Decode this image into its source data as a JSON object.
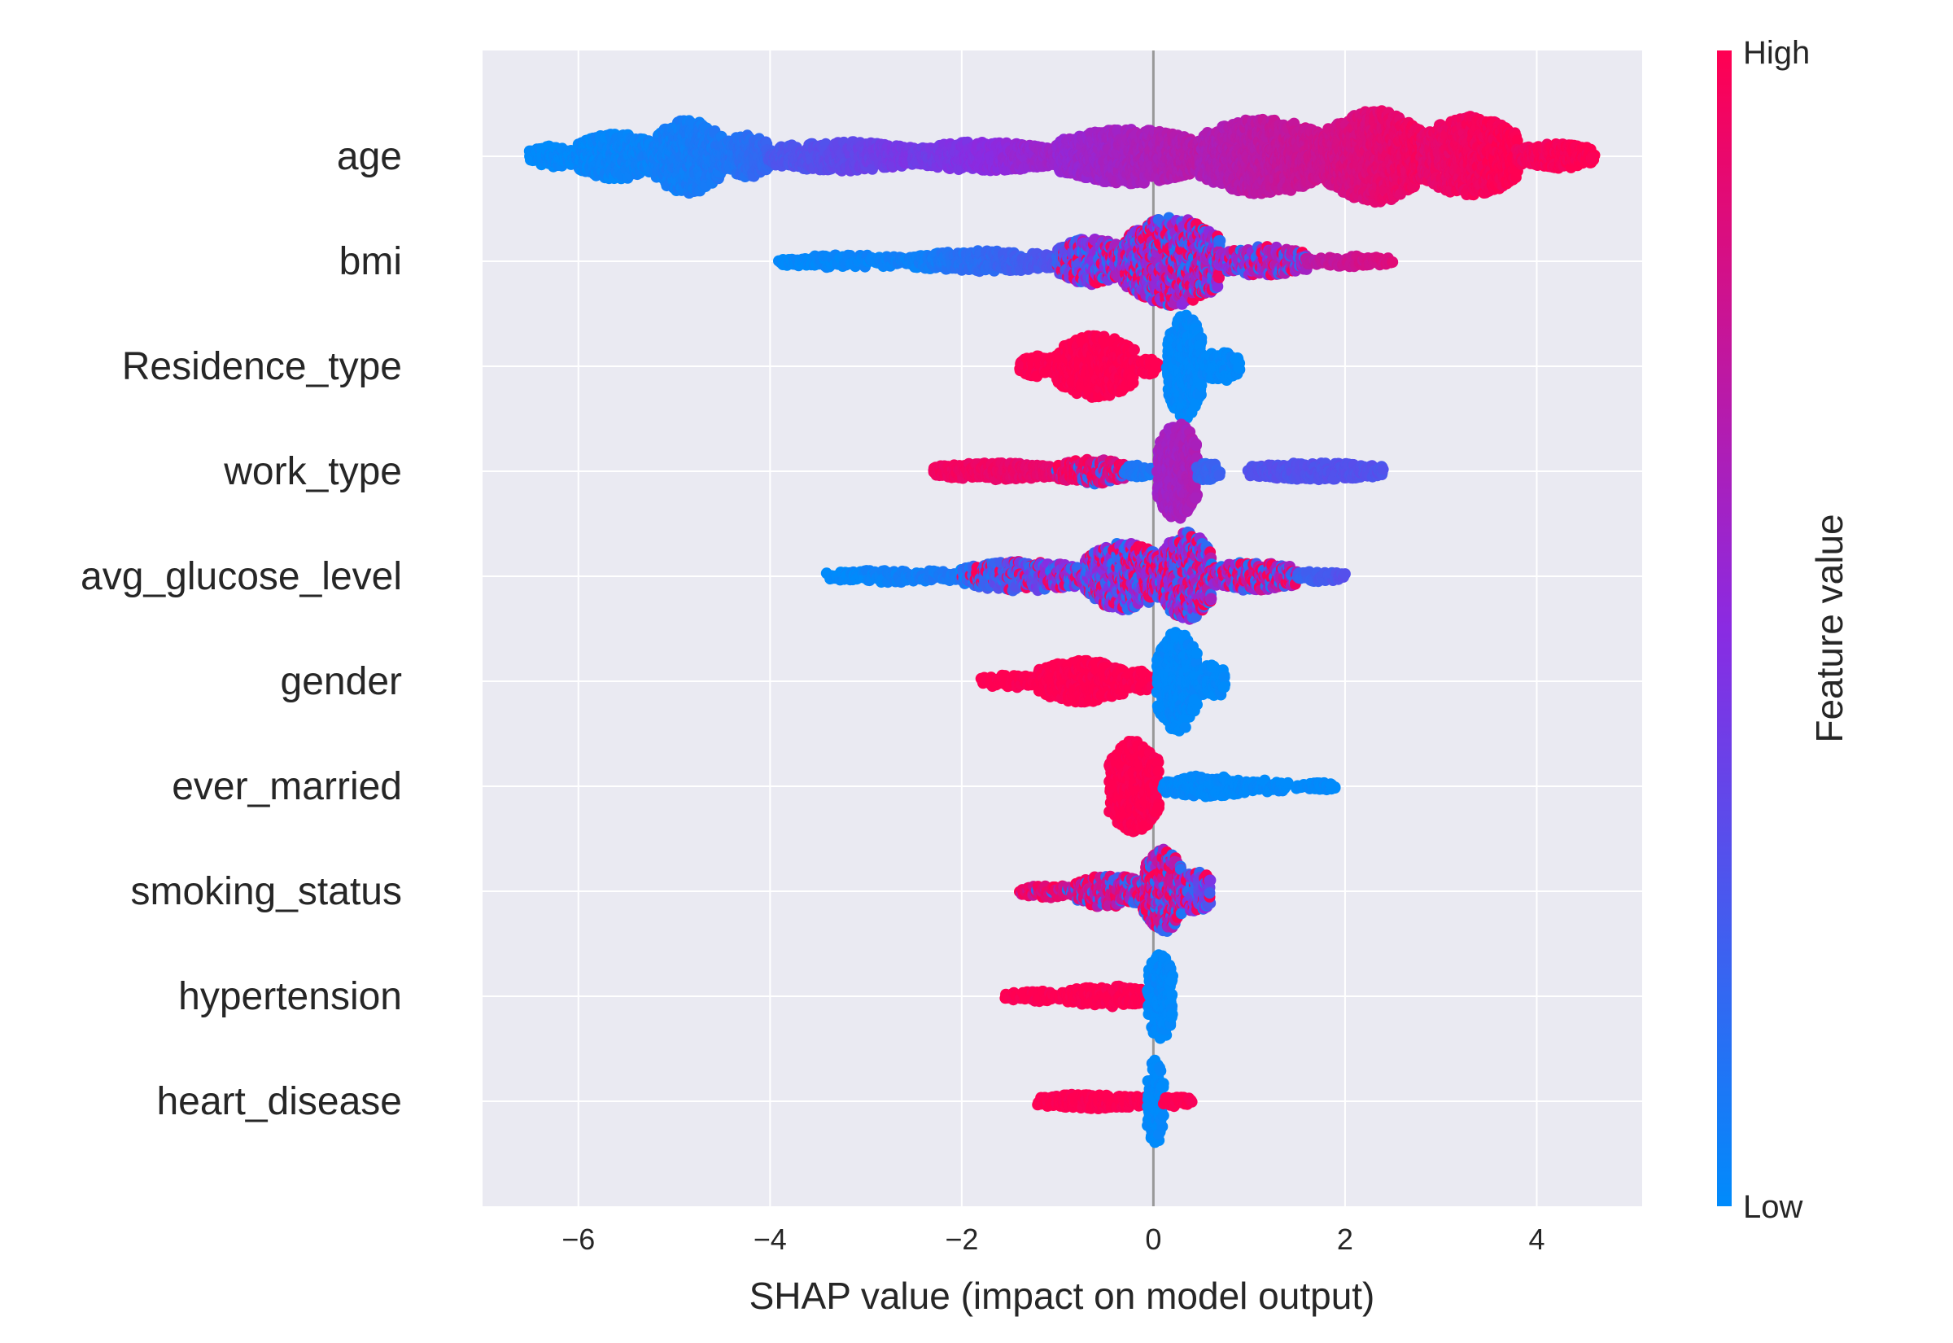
{
  "chart_data": {
    "type": "scatter",
    "subtype": "shap-beeswarm",
    "xlabel": "SHAP value (impact on model output)",
    "xlim": [
      -7.0,
      5.1
    ],
    "xticks": [
      -6,
      -4,
      -2,
      0,
      2,
      4
    ],
    "xtick_labels": [
      "−6",
      "−4",
      "−2",
      "0",
      "2",
      "4"
    ],
    "grid": true,
    "colorbar": {
      "label": "Feature value",
      "high_label": "High",
      "low_label": "Low",
      "high_color": "#ff0052",
      "mid_color": "#8a2be2",
      "low_color": "#008bfb",
      "placement": "right"
    },
    "colors": {
      "background": "#eaeaf2",
      "grid": "#ffffff",
      "zero_line": "#999999"
    },
    "features": [
      {
        "name": "age",
        "segments": [
          {
            "x0": -6.5,
            "x1": -6.0,
            "v0": 0.0,
            "v1": 0.02,
            "w": 0.1
          },
          {
            "x0": -6.0,
            "x1": -5.2,
            "v0": 0.02,
            "v1": 0.05,
            "w": 0.22
          },
          {
            "x0": -5.2,
            "x1": -4.5,
            "v0": 0.05,
            "v1": 0.1,
            "w": 0.35
          },
          {
            "x0": -4.5,
            "x1": -4.0,
            "v0": 0.1,
            "v1": 0.2,
            "w": 0.2
          },
          {
            "x0": -4.0,
            "x1": -2.5,
            "v0": 0.25,
            "v1": 0.45,
            "w": 0.14
          },
          {
            "x0": -2.5,
            "x1": -1.0,
            "v0": 0.4,
            "v1": 0.6,
            "w": 0.14
          },
          {
            "x0": -1.0,
            "x1": 0.5,
            "v0": 0.55,
            "v1": 0.7,
            "w": 0.26
          },
          {
            "x0": 0.5,
            "x1": 1.8,
            "v0": 0.65,
            "v1": 0.8,
            "w": 0.36
          },
          {
            "x0": 1.8,
            "x1": 2.8,
            "v0": 0.8,
            "v1": 0.95,
            "w": 0.44
          },
          {
            "x0": 2.8,
            "x1": 3.8,
            "v0": 0.9,
            "v1": 1.0,
            "w": 0.38
          },
          {
            "x0": 3.8,
            "x1": 4.6,
            "v0": 0.95,
            "v1": 1.0,
            "w": 0.12
          }
        ]
      },
      {
        "name": "bmi",
        "segments": [
          {
            "x0": -3.9,
            "x1": -2.5,
            "v0": 0.0,
            "v1": 0.05,
            "w": 0.06
          },
          {
            "x0": -2.5,
            "x1": -1.0,
            "v0": 0.05,
            "v1": 0.3,
            "w": 0.1
          },
          {
            "x0": -1.0,
            "x1": -0.3,
            "v0": 0.3,
            "v1": 0.6,
            "w": 0.22,
            "mix": 0.4
          },
          {
            "x0": -0.3,
            "x1": 0.7,
            "v0": 0.5,
            "v1": 0.6,
            "w": 0.42,
            "mix": 0.5
          },
          {
            "x0": 0.7,
            "x1": 1.6,
            "v0": 0.55,
            "v1": 0.65,
            "w": 0.14,
            "mix": 0.3
          },
          {
            "x0": 1.6,
            "x1": 2.5,
            "v0": 0.7,
            "v1": 0.85,
            "w": 0.05
          }
        ]
      },
      {
        "name": "Residence_type",
        "segments": [
          {
            "x0": -1.4,
            "x1": -1.0,
            "v0": 1.0,
            "v1": 1.0,
            "w": 0.1
          },
          {
            "x0": -1.0,
            "x1": -0.2,
            "v0": 1.0,
            "v1": 1.0,
            "w": 0.3
          },
          {
            "x0": -0.2,
            "x1": 0.05,
            "v0": 1.0,
            "v1": 1.0,
            "w": 0.08
          },
          {
            "x0": 0.15,
            "x1": 0.5,
            "v0": 0.0,
            "v1": 0.0,
            "w": 0.5
          },
          {
            "x0": 0.5,
            "x1": 0.9,
            "v0": 0.0,
            "v1": 0.0,
            "w": 0.14
          }
        ]
      },
      {
        "name": "work_type",
        "segments": [
          {
            "x0": -2.3,
            "x1": -1.0,
            "v0": 0.95,
            "v1": 0.9,
            "w": 0.08
          },
          {
            "x0": -1.0,
            "x1": -0.3,
            "v0": 0.9,
            "v1": 0.85,
            "w": 0.12,
            "mix": 0.3
          },
          {
            "x0": -0.3,
            "x1": 0.0,
            "v0": 0.1,
            "v1": 0.1,
            "w": 0.06
          },
          {
            "x0": 0.05,
            "x1": 0.45,
            "v0": 0.6,
            "v1": 0.65,
            "w": 0.46
          },
          {
            "x0": 0.45,
            "x1": 0.7,
            "v0": 0.2,
            "v1": 0.2,
            "w": 0.1
          },
          {
            "x0": 1.0,
            "x1": 2.4,
            "v0": 0.3,
            "v1": 0.3,
            "w": 0.08
          }
        ]
      },
      {
        "name": "avg_glucose_level",
        "segments": [
          {
            "x0": -3.4,
            "x1": -2.0,
            "v0": 0.0,
            "v1": 0.1,
            "w": 0.06
          },
          {
            "x0": -2.0,
            "x1": -0.7,
            "v0": 0.1,
            "v1": 0.6,
            "w": 0.14,
            "mix": 0.4
          },
          {
            "x0": -0.7,
            "x1": 0.1,
            "v0": 0.5,
            "v1": 0.55,
            "w": 0.32,
            "mix": 0.5
          },
          {
            "x0": 0.1,
            "x1": 0.6,
            "v0": 0.55,
            "v1": 0.6,
            "w": 0.42,
            "mix": 0.5
          },
          {
            "x0": 0.6,
            "x1": 1.5,
            "v0": 0.6,
            "v1": 0.7,
            "w": 0.14,
            "mix": 0.4
          },
          {
            "x0": 1.5,
            "x1": 2.0,
            "v0": 0.2,
            "v1": 0.3,
            "w": 0.05
          }
        ]
      },
      {
        "name": "gender",
        "segments": [
          {
            "x0": -1.8,
            "x1": -1.2,
            "v0": 1.0,
            "v1": 1.0,
            "w": 0.06
          },
          {
            "x0": -1.2,
            "x1": -0.3,
            "v0": 1.0,
            "v1": 1.0,
            "w": 0.2
          },
          {
            "x0": -0.3,
            "x1": 0.0,
            "v0": 1.0,
            "v1": 1.0,
            "w": 0.1
          },
          {
            "x0": 0.05,
            "x1": 0.45,
            "v0": 0.0,
            "v1": 0.0,
            "w": 0.48
          },
          {
            "x0": 0.45,
            "x1": 0.75,
            "v0": 0.0,
            "v1": 0.0,
            "w": 0.16
          }
        ]
      },
      {
        "name": "ever_married",
        "segments": [
          {
            "x0": -0.45,
            "x1": 0.05,
            "v0": 1.0,
            "v1": 1.0,
            "w": 0.44
          },
          {
            "x0": 0.1,
            "x1": 1.0,
            "v0": 0.0,
            "v1": 0.0,
            "w": 0.1
          },
          {
            "x0": 1.0,
            "x1": 1.4,
            "v0": 0.0,
            "v1": 0.0,
            "w": 0.06
          },
          {
            "x0": 1.5,
            "x1": 1.9,
            "v0": 0.0,
            "v1": 0.0,
            "w": 0.04
          }
        ]
      },
      {
        "name": "smoking_status",
        "segments": [
          {
            "x0": -1.4,
            "x1": -0.8,
            "v0": 0.9,
            "v1": 0.8,
            "w": 0.06,
            "mix": 0.3
          },
          {
            "x0": -0.8,
            "x1": -0.1,
            "v0": 0.8,
            "v1": 0.7,
            "w": 0.16,
            "mix": 0.4
          },
          {
            "x0": -0.1,
            "x1": 0.3,
            "v0": 0.7,
            "v1": 0.7,
            "w": 0.4,
            "mix": 0.5
          },
          {
            "x0": 0.3,
            "x1": 0.6,
            "v0": 0.5,
            "v1": 0.4,
            "w": 0.2,
            "mix": 0.4
          }
        ]
      },
      {
        "name": "hypertension",
        "segments": [
          {
            "x0": -1.55,
            "x1": -0.9,
            "v0": 1.0,
            "v1": 1.0,
            "w": 0.05
          },
          {
            "x0": -0.9,
            "x1": -0.05,
            "v0": 1.0,
            "v1": 1.0,
            "w": 0.1
          },
          {
            "x0": -0.05,
            "x1": 0.2,
            "v0": 0.0,
            "v1": 0.0,
            "w": 0.42
          }
        ]
      },
      {
        "name": "heart_disease",
        "segments": [
          {
            "x0": -1.2,
            "x1": -0.05,
            "v0": 1.0,
            "v1": 1.0,
            "w": 0.07
          },
          {
            "x0": -0.05,
            "x1": 0.1,
            "v0": 0.0,
            "v1": 0.0,
            "w": 0.42
          },
          {
            "x0": 0.1,
            "x1": 0.4,
            "v0": 1.0,
            "v1": 1.0,
            "w": 0.05
          }
        ]
      }
    ]
  }
}
